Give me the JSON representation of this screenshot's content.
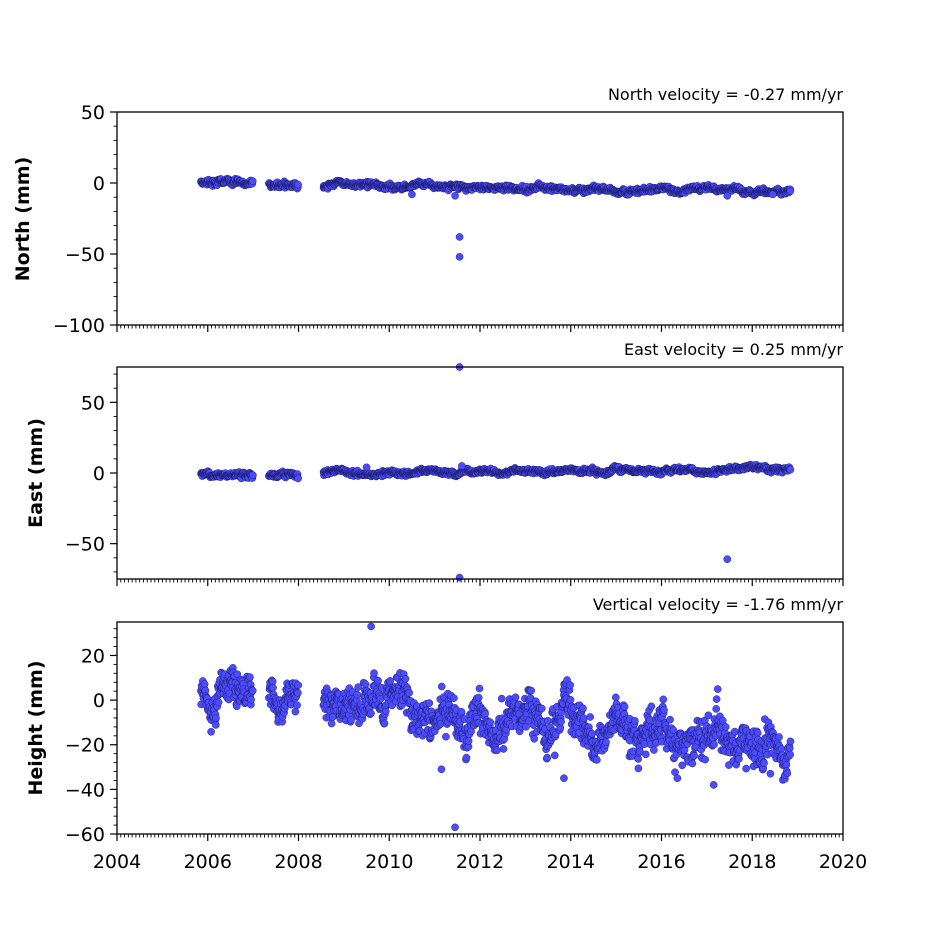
{
  "chart_data": [
    {
      "type": "scatter",
      "title": "North velocity = -0.27 mm/yr",
      "ylabel": "North (mm)",
      "xlim": [
        2004,
        2020
      ],
      "ylim": [
        -100,
        50
      ],
      "yticks": [
        50,
        0,
        -50,
        -100
      ],
      "series": [
        {
          "segments": [
            {
              "start": 2005.85,
              "end": 2007.0,
              "mean": 0.5,
              "slope": -1.0,
              "noise": 1.4
            },
            {
              "start": 2007.35,
              "end": 2008.0,
              "mean": -0.5,
              "slope": -0.5,
              "noise": 1.4
            },
            {
              "start": 2008.55,
              "end": 2018.85,
              "mean": -2.5,
              "slope": -0.27,
              "noise": 1.2
            }
          ],
          "outliers": [
            [
              2011.55,
              -38
            ],
            [
              2011.55,
              -52
            ],
            [
              2011.45,
              -9
            ],
            [
              2010.5,
              -8
            ],
            [
              2017.45,
              -9
            ],
            [
              2018.45,
              -8
            ]
          ]
        }
      ],
      "color": "#4b4bff"
    },
    {
      "type": "scatter",
      "title": "East velocity = 0.25 mm/yr",
      "ylabel": "East (mm)",
      "xlim": [
        2004,
        2020
      ],
      "ylim": [
        -75,
        75
      ],
      "yticks": [
        50,
        0,
        -50
      ],
      "series": [
        {
          "segments": [
            {
              "start": 2005.85,
              "end": 2007.0,
              "mean": -1.0,
              "slope": -1.0,
              "noise": 1.3
            },
            {
              "start": 2007.35,
              "end": 2008.0,
              "mean": -1.5,
              "slope": 0.5,
              "noise": 1.3
            },
            {
              "start": 2008.55,
              "end": 2018.85,
              "mean": 0.0,
              "slope": 0.25,
              "noise": 1.1
            }
          ],
          "outliers": [
            [
              2011.55,
              75
            ],
            [
              2011.55,
              -74
            ],
            [
              2017.45,
              -61
            ],
            [
              2009.5,
              4
            ],
            [
              2011.6,
              5
            ]
          ]
        }
      ],
      "color": "#4b4bff"
    },
    {
      "type": "scatter",
      "title": "Vertical velocity = -1.76 mm/yr",
      "ylabel": "Height (mm)",
      "xlim": [
        2004,
        2020
      ],
      "ylim": [
        -60,
        35
      ],
      "yticks": [
        20,
        0,
        -20,
        -40,
        -60
      ],
      "xticks": [
        2004,
        2006,
        2008,
        2010,
        2012,
        2014,
        2016,
        2018,
        2020
      ],
      "series": [
        {
          "segments": [
            {
              "start": 2005.85,
              "end": 2007.0,
              "mean": 2.0,
              "slope": 4.0,
              "noise": 6.0
            },
            {
              "start": 2007.35,
              "end": 2008.0,
              "mean": 1.0,
              "slope": 0.0,
              "noise": 6.0
            },
            {
              "start": 2008.55,
              "end": 2018.85,
              "mean": -3.0,
              "slope": -1.76,
              "noise": 6.0
            }
          ],
          "outliers": [
            [
              2009.6,
              33
            ],
            [
              2011.45,
              -57
            ],
            [
              2013.85,
              -35
            ],
            [
              2017.15,
              -38
            ],
            [
              2011.15,
              -31
            ],
            [
              2016.35,
              -35
            ],
            [
              2018.4,
              -33
            ]
          ]
        }
      ],
      "color": "#4b4bff"
    }
  ]
}
